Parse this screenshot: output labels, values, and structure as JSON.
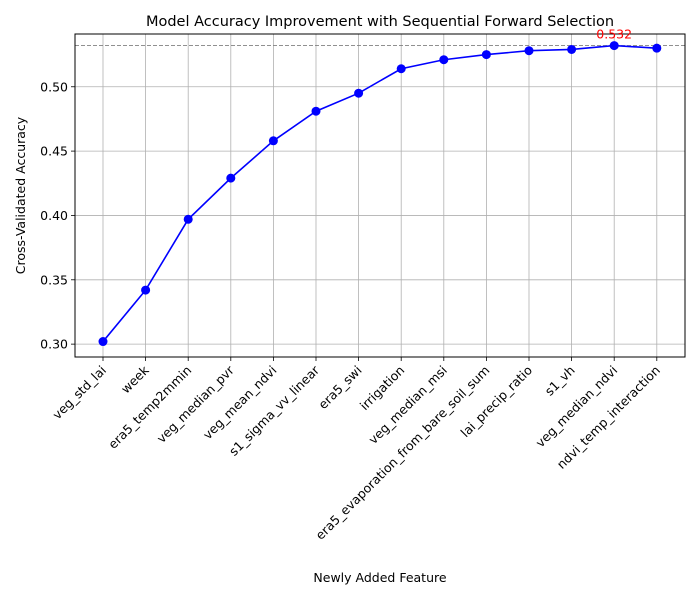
{
  "chart_data": {
    "type": "line",
    "title": "Model Accuracy Improvement with Sequential Forward Selection",
    "xlabel": "Newly Added Feature",
    "ylabel": "Cross-Validated Accuracy",
    "categories": [
      "veg_std_lai",
      "week",
      "era5_temp2mmin",
      "veg_median_pvr",
      "veg_mean_ndvi",
      "s1_sigma_vv_linear",
      "era5_swi",
      "irrigation",
      "veg_median_msi",
      "era5_evaporation_from_bare_soil_sum",
      "lai_precip_ratio",
      "s1_vh",
      "veg_median_ndvi",
      "ndvi_temp_interaction"
    ],
    "values": [
      0.302,
      0.342,
      0.397,
      0.429,
      0.458,
      0.481,
      0.495,
      0.514,
      0.521,
      0.525,
      0.528,
      0.529,
      0.532,
      0.53
    ],
    "ylim": [
      0.29,
      0.541
    ],
    "yticks": [
      "0.30",
      "0.35",
      "0.40",
      "0.45",
      "0.50"
    ],
    "grid": true,
    "line_color": "#0000ff",
    "marker_color": "#0000ff",
    "reference_line": {
      "value": 0.532,
      "color": "#808080",
      "style": "dashed"
    },
    "annotation": {
      "text": "0.532",
      "category": "veg_median_ndvi",
      "color": "#ff0000"
    }
  }
}
